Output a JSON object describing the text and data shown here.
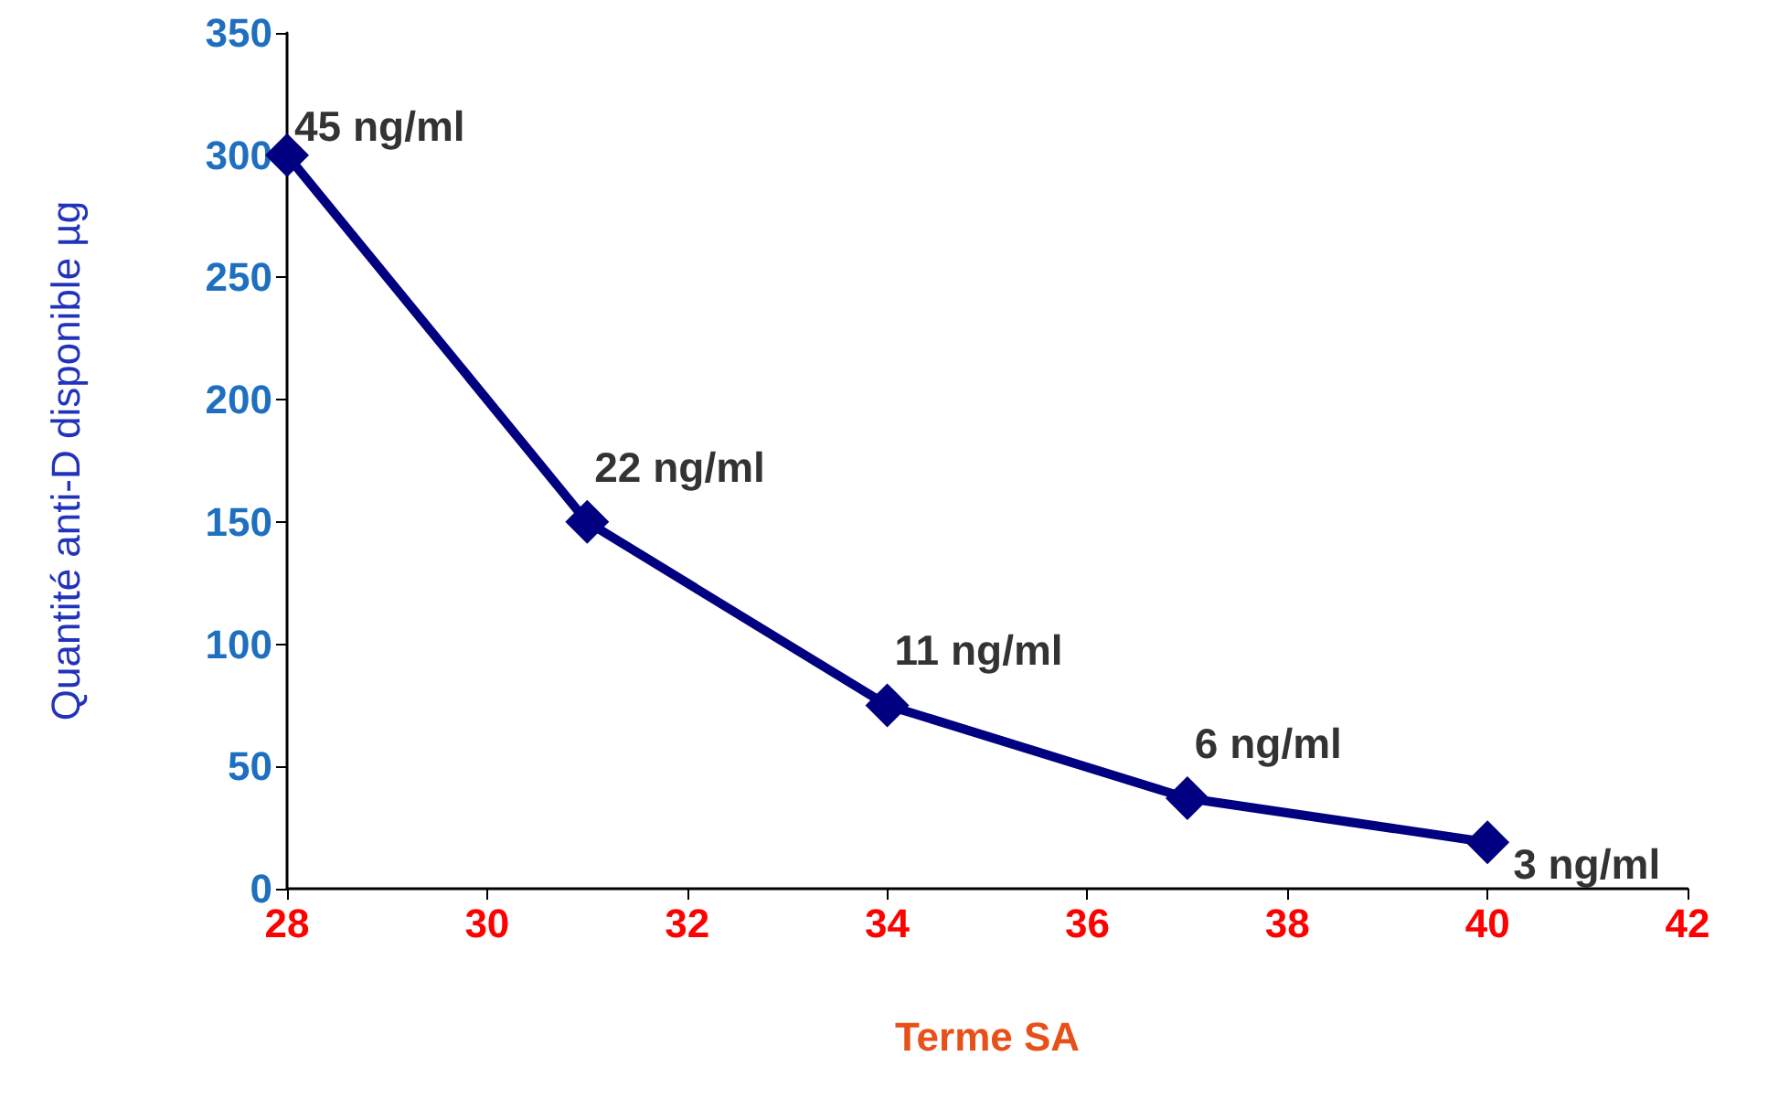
{
  "chart_data": {
    "type": "line",
    "xlabel": "Terme SA",
    "ylabel": "Quantité anti-D disponible µg",
    "x": [
      28,
      31,
      34,
      37,
      40
    ],
    "values": [
      300,
      150,
      75,
      37,
      19
    ],
    "annotations": [
      {
        "text": "45 ng/ml",
        "x": 28,
        "y": 300
      },
      {
        "text": "22 ng/ml",
        "x": 31,
        "y": 150
      },
      {
        "text": "11 ng/ml",
        "x": 34,
        "y": 75
      },
      {
        "text": "6 ng/ml",
        "x": 37,
        "y": 37
      },
      {
        "text": "3 ng/ml",
        "x": 40,
        "y": 19
      }
    ],
    "color": "#000080",
    "marker": "diamond",
    "line_style": "solid",
    "grid": false,
    "xlim": [
      28,
      42
    ],
    "xticks": [
      28,
      30,
      32,
      34,
      36,
      38,
      40,
      42
    ],
    "ylim": [
      0,
      350
    ],
    "yticks": [
      0,
      50,
      100,
      150,
      200,
      250,
      300,
      350
    ]
  }
}
